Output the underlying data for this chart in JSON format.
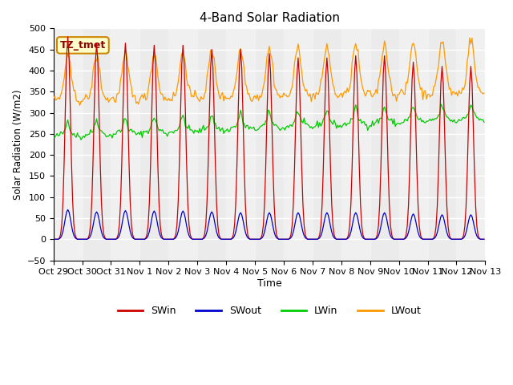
{
  "title": "4-Band Solar Radiation",
  "ylabel": "Solar Radiation (W/m2)",
  "xlabel": "Time",
  "annotation": "TZ_tmet",
  "ylim": [
    -50,
    500
  ],
  "xlim": [
    0,
    360
  ],
  "xtick_labels": [
    "Oct 29",
    "Oct 30",
    "Oct 31",
    "Nov 1",
    "Nov 2",
    "Nov 3",
    "Nov 4",
    "Nov 5",
    "Nov 6",
    "Nov 7",
    "Nov 8",
    "Nov 9",
    "Nov 10",
    "Nov 11",
    "Nov 12",
    "Nov 13"
  ],
  "ytick_values": [
    -50,
    0,
    50,
    100,
    150,
    200,
    250,
    300,
    350,
    400,
    450,
    500
  ],
  "colors": {
    "SWin": "#cc0000",
    "SWout": "#0000cc",
    "LWin": "#00cc00",
    "LWout": "#ff9900"
  },
  "plot_bg": "#ebebeb",
  "n_hours": 360,
  "sw_peaks": [
    480,
    465,
    465,
    460,
    460,
    450,
    450,
    440,
    430,
    430,
    435,
    435,
    420,
    410
  ],
  "sw_out_peaks": [
    70,
    65,
    68,
    67,
    67,
    65,
    63,
    63,
    63,
    63,
    63,
    63,
    60,
    58
  ],
  "lwin_base": 240,
  "lwout_base": 330
}
